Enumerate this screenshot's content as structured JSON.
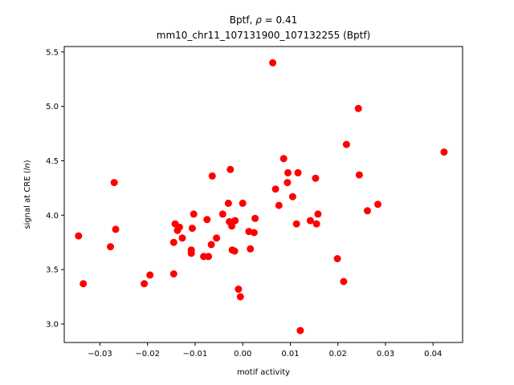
{
  "chart_data": {
    "type": "scatter",
    "title_line1_prefix": "Bptf, ",
    "title_line1_symbol": "ρ",
    "title_line1_suffix": " = 0.41",
    "title_line2": "mm10_chr11_107131900_107132255 (Bptf)",
    "xlabel": "motif activity",
    "ylabel_prefix": "signal at CRE (",
    "ylabel_italic": "ln",
    "ylabel_suffix": ")",
    "xlim": [
      -0.0375,
      0.0462
    ],
    "ylim": [
      2.83,
      5.55
    ],
    "xticks": [
      -0.03,
      -0.02,
      -0.01,
      0.0,
      0.01,
      0.02,
      0.03,
      0.04
    ],
    "xtick_labels": [
      "−0.03",
      "−0.02",
      "−0.01",
      "0.00",
      "0.01",
      "0.02",
      "0.03",
      "0.04"
    ],
    "yticks": [
      3.0,
      3.5,
      4.0,
      4.5,
      5.0,
      5.5
    ],
    "ytick_labels": [
      "3.0",
      "3.5",
      "4.0",
      "4.5",
      "5.0",
      "5.5"
    ],
    "marker_color": "#ff0000",
    "grid": false,
    "legend": false,
    "points": [
      {
        "x": -0.0345,
        "y": 3.81
      },
      {
        "x": -0.0335,
        "y": 3.37
      },
      {
        "x": -0.0278,
        "y": 3.71
      },
      {
        "x": -0.027,
        "y": 4.3
      },
      {
        "x": -0.0267,
        "y": 3.87
      },
      {
        "x": -0.0207,
        "y": 3.37
      },
      {
        "x": -0.0195,
        "y": 3.45
      },
      {
        "x": -0.0145,
        "y": 3.46
      },
      {
        "x": -0.0145,
        "y": 3.75
      },
      {
        "x": -0.0142,
        "y": 3.92
      },
      {
        "x": -0.0137,
        "y": 3.86
      },
      {
        "x": -0.0133,
        "y": 3.89
      },
      {
        "x": -0.0127,
        "y": 3.79
      },
      {
        "x": -0.0108,
        "y": 3.65
      },
      {
        "x": -0.0108,
        "y": 3.68
      },
      {
        "x": -0.0106,
        "y": 3.88
      },
      {
        "x": -0.0103,
        "y": 4.01
      },
      {
        "x": -0.0082,
        "y": 3.62
      },
      {
        "x": -0.0075,
        "y": 3.96
      },
      {
        "x": -0.0072,
        "y": 3.62
      },
      {
        "x": -0.0066,
        "y": 3.73
      },
      {
        "x": -0.0064,
        "y": 4.36
      },
      {
        "x": -0.0055,
        "y": 3.79
      },
      {
        "x": -0.0042,
        "y": 4.01
      },
      {
        "x": -0.003,
        "y": 4.11
      },
      {
        "x": -0.0028,
        "y": 3.94
      },
      {
        "x": -0.0026,
        "y": 4.42
      },
      {
        "x": -0.0023,
        "y": 3.9
      },
      {
        "x": -0.0022,
        "y": 3.68
      },
      {
        "x": -0.0017,
        "y": 3.67
      },
      {
        "x": -0.0016,
        "y": 3.95
      },
      {
        "x": -0.0009,
        "y": 3.32
      },
      {
        "x": -0.0005,
        "y": 3.25
      },
      {
        "x": 0.0,
        "y": 4.11
      },
      {
        "x": 0.0013,
        "y": 3.85
      },
      {
        "x": 0.0016,
        "y": 3.69
      },
      {
        "x": 0.0024,
        "y": 3.84
      },
      {
        "x": 0.0026,
        "y": 3.97
      },
      {
        "x": 0.0063,
        "y": 5.4
      },
      {
        "x": 0.0069,
        "y": 4.24
      },
      {
        "x": 0.0076,
        "y": 4.09
      },
      {
        "x": 0.0086,
        "y": 4.52
      },
      {
        "x": 0.0094,
        "y": 4.3
      },
      {
        "x": 0.0095,
        "y": 4.39
      },
      {
        "x": 0.0105,
        "y": 4.17
      },
      {
        "x": 0.0113,
        "y": 3.92
      },
      {
        "x": 0.0116,
        "y": 4.39
      },
      {
        "x": 0.0121,
        "y": 2.94
      },
      {
        "x": 0.0142,
        "y": 3.95
      },
      {
        "x": 0.0153,
        "y": 4.34
      },
      {
        "x": 0.0155,
        "y": 3.92
      },
      {
        "x": 0.0158,
        "y": 4.01
      },
      {
        "x": 0.0199,
        "y": 3.6
      },
      {
        "x": 0.0212,
        "y": 3.39
      },
      {
        "x": 0.0218,
        "y": 4.65
      },
      {
        "x": 0.0243,
        "y": 4.98
      },
      {
        "x": 0.0245,
        "y": 4.37
      },
      {
        "x": 0.0262,
        "y": 4.04
      },
      {
        "x": 0.0284,
        "y": 4.1
      },
      {
        "x": 0.0423,
        "y": 4.58
      }
    ]
  }
}
